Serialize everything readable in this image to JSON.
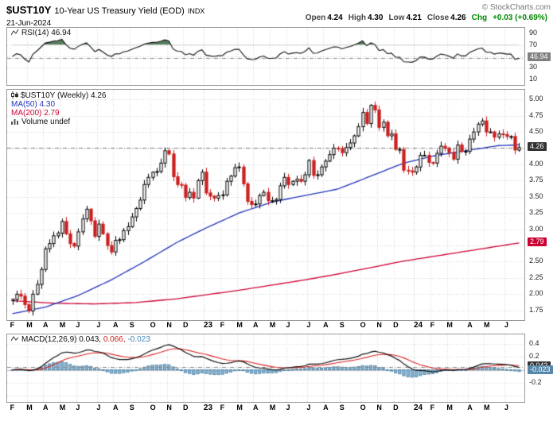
{
  "header": {
    "symbol": "$UST10Y",
    "title": "10-Year US Treasury Yield (EOD)",
    "exchange": "INDX",
    "date": "21-Jun-2024",
    "copyright": "© StockCharts.com",
    "quote": {
      "open_label": "Open",
      "open": "4.24",
      "high_label": "High",
      "high": "4.30",
      "low_label": "Low",
      "low": "4.21",
      "close_label": "Close",
      "close": "4.26",
      "chg_label": "Chg",
      "chg": "+0.03 (+0.69%)"
    }
  },
  "rsi_panel": {
    "legend": "RSI(14) 46.94",
    "last": "46.94",
    "ticks": [
      "90",
      "70",
      "30",
      "10"
    ]
  },
  "price_panel": {
    "legend_symbol": "$UST10Y (Weekly) 4.26",
    "legend_ma50": "MA(50) 4.30",
    "legend_ma200": "MA(200) 2.79",
    "legend_volume": "Volume undef",
    "last": "4.26",
    "ma200_last": "2.79",
    "ticks": [
      "5.00",
      "4.75",
      "4.50",
      "4.00",
      "3.75",
      "3.50",
      "3.25",
      "3.00",
      "2.50",
      "2.25",
      "2.00",
      "1.75"
    ]
  },
  "macd_panel": {
    "legend_name": "MACD(12,26,9)",
    "legend_macd": "0.043,",
    "legend_signal": "0.066,",
    "legend_hist": "-0.023",
    "macd_last": "0.043",
    "hist_last": "-0.023",
    "ticks": [
      "0.4",
      "0.2",
      "-0.2"
    ]
  },
  "colors": {
    "up_candle": "#000000",
    "down_candle": "#cc2020",
    "ma50": "#2233bb",
    "ma200": "#cc0033",
    "rsi_line": "#111111",
    "rsi_fill": "#567d5e",
    "macd_line": "#111111",
    "signal_line": "#dd2222",
    "hist_fill": "#88b8d8",
    "hist_stroke": "#5588aa",
    "grid": "#d4d4d4",
    "panel_border": "#999999",
    "chg_green": "#008800"
  },
  "chart_data": {
    "type": "candlestick+indicators",
    "timeframe": "weekly",
    "title": "$UST10Y 10-Year US Treasury Yield (EOD) INDX",
    "open": 4.24,
    "high": 4.3,
    "low": 4.21,
    "close": 4.26,
    "chg": "+0.03 (+0.69%)",
    "x_axis": {
      "month_labels": [
        [
          "F",
          0
        ],
        [
          "M",
          4
        ],
        [
          "A",
          8
        ],
        [
          "M",
          12
        ],
        [
          "J",
          16
        ],
        [
          "J",
          21
        ],
        [
          "A",
          25
        ],
        [
          "S",
          29
        ],
        [
          "O",
          34
        ],
        [
          "N",
          38
        ],
        [
          "D",
          42
        ],
        [
          "23",
          47
        ],
        [
          "F",
          51
        ],
        [
          "M",
          55
        ],
        [
          "A",
          59
        ],
        [
          "M",
          63
        ],
        [
          "J",
          67
        ],
        [
          "J",
          72
        ],
        [
          "A",
          76
        ],
        [
          "S",
          80
        ],
        [
          "O",
          85
        ],
        [
          "N",
          89
        ],
        [
          "D",
          93
        ],
        [
          "24",
          98
        ],
        [
          "F",
          102
        ],
        [
          "M",
          106
        ],
        [
          "A",
          111
        ],
        [
          "M",
          115
        ],
        [
          "J",
          120
        ]
      ]
    },
    "price": {
      "ylim": [
        1.6,
        5.15
      ],
      "grid_step": 0.25,
      "last_close": 4.26,
      "closes": [
        1.92,
        2.0,
        1.97,
        1.84,
        1.74,
        2.0,
        2.15,
        2.38,
        2.7,
        2.78,
        2.9,
        2.94,
        3.12,
        2.93,
        2.78,
        2.74,
        2.96,
        3.16,
        3.31,
        3.13,
        2.89,
        3.08,
        2.93,
        2.75,
        2.65,
        2.83,
        2.84,
        2.98,
        3.04,
        3.19,
        3.32,
        3.45,
        3.69,
        3.8,
        3.88,
        3.89,
        4.02,
        4.21,
        4.16,
        3.81,
        3.69,
        3.68,
        3.49,
        3.57,
        3.48,
        3.75,
        3.88,
        3.56,
        3.51,
        3.48,
        3.52,
        3.53,
        3.74,
        3.82,
        3.95,
        3.96,
        3.7,
        3.43,
        3.38,
        3.39,
        3.52,
        3.57,
        3.44,
        3.44,
        3.46,
        3.67,
        3.8,
        3.69,
        3.74,
        3.77,
        3.74,
        3.84,
        4.06,
        3.83,
        3.84,
        3.96,
        4.05,
        4.15,
        4.25,
        4.24,
        4.18,
        4.26,
        4.33,
        4.44,
        4.58,
        4.8,
        4.63,
        4.91,
        4.84,
        4.57,
        4.65,
        4.44,
        4.47,
        4.23,
        4.23,
        3.91,
        3.9,
        3.88,
        3.96,
        4.14,
        4.14,
        4.03,
        4.02,
        4.17,
        4.28,
        4.25,
        4.18,
        4.08,
        4.3,
        4.2,
        4.2,
        4.39,
        4.5,
        4.62,
        4.67,
        4.5,
        4.5,
        4.42,
        4.47,
        4.46,
        4.43,
        4.43,
        4.22,
        4.26
      ],
      "ma50": {
        "period": 50,
        "last": 4.3,
        "anchors": [
          [
            0,
            1.7
          ],
          [
            8,
            1.8
          ],
          [
            16,
            1.98
          ],
          [
            24,
            2.22
          ],
          [
            32,
            2.5
          ],
          [
            40,
            2.8
          ],
          [
            47,
            3.02
          ],
          [
            55,
            3.25
          ],
          [
            63,
            3.42
          ],
          [
            71,
            3.52
          ],
          [
            79,
            3.62
          ],
          [
            87,
            3.82
          ],
          [
            95,
            4.02
          ],
          [
            103,
            4.14
          ],
          [
            111,
            4.22
          ],
          [
            118,
            4.29
          ],
          [
            123,
            4.3
          ]
        ]
      },
      "ma200": {
        "period": 200,
        "last": 2.79,
        "anchors": [
          [
            0,
            1.9
          ],
          [
            10,
            1.86
          ],
          [
            20,
            1.85
          ],
          [
            30,
            1.87
          ],
          [
            40,
            1.93
          ],
          [
            47,
            1.99
          ],
          [
            55,
            2.06
          ],
          [
            63,
            2.14
          ],
          [
            71,
            2.22
          ],
          [
            79,
            2.31
          ],
          [
            87,
            2.41
          ],
          [
            95,
            2.51
          ],
          [
            103,
            2.59
          ],
          [
            111,
            2.67
          ],
          [
            118,
            2.74
          ],
          [
            123,
            2.79
          ]
        ]
      }
    },
    "rsi": {
      "period": 14,
      "last": 46.94,
      "overbought": 70,
      "oversold": 30,
      "midline": 50,
      "ylim": [
        0,
        100
      ]
    },
    "macd": {
      "params": [
        12,
        26,
        9
      ],
      "last_macd": 0.043,
      "last_signal": 0.066,
      "last_hist": -0.023,
      "ylim": [
        -0.5,
        0.55
      ]
    }
  }
}
